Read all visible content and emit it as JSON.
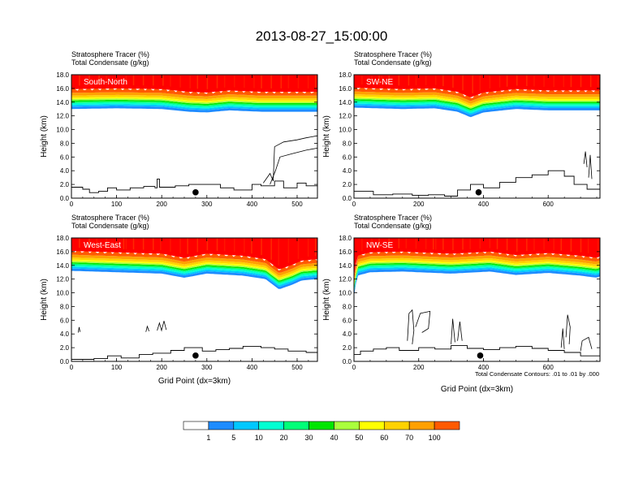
{
  "figure": {
    "title": "2013-08-27_15:00:00",
    "footnote": "Total Condensate Contours: .01 to .01 by .000"
  },
  "colorbar": {
    "labels": [
      "1",
      "5",
      "10",
      "20",
      "30",
      "40",
      "50",
      "60",
      "70",
      "100"
    ],
    "colors": [
      "#ffffff",
      "#1e8cff",
      "#00c8ff",
      "#00ffd2",
      "#00ff78",
      "#00e600",
      "#aaff3c",
      "#ffff00",
      "#ffd200",
      "#ffa000",
      "#ff5a00",
      "#ff0000"
    ]
  },
  "chart_data": [
    {
      "type": "contour",
      "panel_label": "South-North",
      "header_line1": "Stratosphere Tracer   (%)",
      "header_line2": "Total Condensate   (g/kg)",
      "ylabel": "Height (km)",
      "xlabel": "",
      "xlim": [
        0,
        545
      ],
      "ylim": [
        0,
        18
      ],
      "xticks": [
        "0",
        "100",
        "200",
        "300",
        "400",
        "500"
      ],
      "yticks": [
        "0.0",
        "2.0",
        "4.0",
        "6.0",
        "8.0",
        "10.0",
        "12.0",
        "14.0",
        "16.0",
        "18.0"
      ],
      "marker_x": 275,
      "terrain": [
        [
          0,
          1.6
        ],
        [
          25,
          1.3
        ],
        [
          40,
          0.8
        ],
        [
          60,
          1.0
        ],
        [
          80,
          1.5
        ],
        [
          100,
          1.2
        ],
        [
          130,
          1.5
        ],
        [
          160,
          1.7
        ],
        [
          185,
          1.5
        ],
        [
          190,
          2.8
        ],
        [
          195,
          1.6
        ],
        [
          230,
          1.8
        ],
        [
          260,
          2.0
        ],
        [
          300,
          2.0
        ],
        [
          330,
          1.5
        ],
        [
          360,
          1.2
        ],
        [
          400,
          2.0
        ],
        [
          420,
          1.8
        ],
        [
          450,
          2.5
        ],
        [
          470,
          1.5
        ],
        [
          500,
          2.2
        ],
        [
          520,
          1.8
        ],
        [
          545,
          1.8
        ]
      ],
      "tracer_base": [
        [
          0,
          13.0
        ],
        [
          100,
          13.1
        ],
        [
          200,
          13.0
        ],
        [
          260,
          12.6
        ],
        [
          300,
          12.5
        ],
        [
          350,
          12.8
        ],
        [
          420,
          12.6
        ],
        [
          480,
          12.6
        ],
        [
          545,
          12.6
        ]
      ],
      "condensate_contours": [
        [
          [
            425,
            2.2
          ],
          [
            440,
            3.6
          ],
          [
            447,
            2.5
          ],
          [
            450,
            7.5
          ],
          [
            470,
            8.2
          ],
          [
            500,
            8.5
          ],
          [
            520,
            8.8
          ],
          [
            545,
            9.1
          ]
        ],
        [
          [
            440,
            2.0
          ],
          [
            452,
            4.0
          ],
          [
            462,
            6.0
          ],
          [
            490,
            6.5
          ],
          [
            520,
            7.0
          ],
          [
            545,
            7.3
          ]
        ]
      ]
    },
    {
      "type": "contour",
      "panel_label": "SW-NE",
      "header_line1": "Stratosphere Tracer   (%)",
      "header_line2": "Total Condensate   (g/kg)",
      "ylabel": "Height (km)",
      "xlabel": "",
      "xlim": [
        0,
        760
      ],
      "ylim": [
        0,
        18
      ],
      "xticks": [
        "0",
        "200",
        "400",
        "600"
      ],
      "yticks": [
        "0.0",
        "2.0",
        "4.0",
        "6.0",
        "8.0",
        "10.0",
        "12.0",
        "14.0",
        "16.0",
        "18.0"
      ],
      "marker_x": 385,
      "terrain": [
        [
          0,
          1.0
        ],
        [
          60,
          0.5
        ],
        [
          120,
          0.6
        ],
        [
          180,
          0.4
        ],
        [
          230,
          0.5
        ],
        [
          280,
          0.3
        ],
        [
          320,
          1.2
        ],
        [
          360,
          2.0
        ],
        [
          400,
          1.5
        ],
        [
          450,
          2.3
        ],
        [
          500,
          3.0
        ],
        [
          550,
          3.4
        ],
        [
          600,
          4.0
        ],
        [
          650,
          3.2
        ],
        [
          680,
          2.0
        ],
        [
          720,
          1.3
        ],
        [
          760,
          1.2
        ]
      ],
      "tracer_base": [
        [
          0,
          13.2
        ],
        [
          150,
          13.0
        ],
        [
          250,
          13.1
        ],
        [
          320,
          12.6
        ],
        [
          360,
          11.8
        ],
        [
          400,
          12.5
        ],
        [
          500,
          13.0
        ],
        [
          600,
          12.8
        ],
        [
          700,
          12.8
        ],
        [
          760,
          12.8
        ]
      ],
      "condensate_contours": [
        [
          [
            710,
            5.0
          ],
          [
            715,
            6.8
          ],
          [
            720,
            4.5
          ]
        ],
        [
          [
            725,
            3.0
          ],
          [
            730,
            6.3
          ],
          [
            735,
            2.8
          ]
        ]
      ]
    },
    {
      "type": "contour",
      "panel_label": "West-East",
      "header_line1": "Stratosphere Tracer   (%)",
      "header_line2": "Total Condensate   (g/kg)",
      "ylabel": "Height (km)",
      "xlabel": "Grid Point (dx=3km)",
      "xlim": [
        0,
        545
      ],
      "ylim": [
        0,
        18
      ],
      "xticks": [
        "0",
        "100",
        "200",
        "300",
        "400",
        "500"
      ],
      "yticks": [
        "0.0",
        "2.0",
        "4.0",
        "6.0",
        "8.0",
        "10.0",
        "12.0",
        "14.0",
        "16.0",
        "18.0"
      ],
      "marker_x": 275,
      "terrain": [
        [
          0,
          0.3
        ],
        [
          50,
          0.4
        ],
        [
          80,
          0.8
        ],
        [
          110,
          0.5
        ],
        [
          150,
          1.0
        ],
        [
          180,
          1.2
        ],
        [
          220,
          1.6
        ],
        [
          250,
          2.0
        ],
        [
          290,
          1.5
        ],
        [
          320,
          1.7
        ],
        [
          350,
          1.9
        ],
        [
          380,
          2.2
        ],
        [
          420,
          2.0
        ],
        [
          450,
          1.8
        ],
        [
          480,
          1.5
        ],
        [
          520,
          1.3
        ],
        [
          545,
          1.0
        ]
      ],
      "tracer_base": [
        [
          0,
          13.2
        ],
        [
          100,
          13.0
        ],
        [
          200,
          12.8
        ],
        [
          250,
          12.2
        ],
        [
          300,
          12.8
        ],
        [
          380,
          12.5
        ],
        [
          430,
          12.0
        ],
        [
          460,
          10.5
        ],
        [
          490,
          11.2
        ],
        [
          510,
          11.8
        ],
        [
          545,
          12.0
        ]
      ],
      "condensate_contours": [
        [
          [
            15,
            4.2
          ],
          [
            17,
            5.0
          ],
          [
            19,
            4.3
          ]
        ],
        [
          [
            165,
            4.3
          ],
          [
            168,
            5.1
          ],
          [
            172,
            4.4
          ]
        ],
        [
          [
            190,
            4.5
          ],
          [
            195,
            5.6
          ],
          [
            200,
            4.4
          ]
        ],
        [
          [
            200,
            4.6
          ],
          [
            205,
            5.9
          ],
          [
            210,
            4.6
          ]
        ]
      ]
    },
    {
      "type": "contour",
      "panel_label": "NW-SE",
      "header_line1": "Stratosphere Tracer   (%)",
      "header_line2": "Total Condensate   (g/kg)",
      "ylabel": "Height (km)",
      "xlabel": "Grid Point (dx=3km)",
      "xlim": [
        0,
        760
      ],
      "ylim": [
        0,
        18
      ],
      "xticks": [
        "0",
        "200",
        "400",
        "600"
      ],
      "yticks": [
        "0.0",
        "2.0",
        "4.0",
        "6.0",
        "8.0",
        "10.0",
        "12.0",
        "14.0",
        "16.0",
        "18.0"
      ],
      "marker_x": 390,
      "terrain": [
        [
          0,
          1.0
        ],
        [
          20,
          1.5
        ],
        [
          60,
          1.8
        ],
        [
          100,
          2.0
        ],
        [
          140,
          1.6
        ],
        [
          200,
          2.0
        ],
        [
          250,
          1.8
        ],
        [
          300,
          2.3
        ],
        [
          350,
          1.9
        ],
        [
          400,
          1.7
        ],
        [
          450,
          2.0
        ],
        [
          500,
          2.2
        ],
        [
          550,
          1.9
        ],
        [
          600,
          1.6
        ],
        [
          650,
          1.3
        ],
        [
          700,
          0.8
        ],
        [
          760,
          0.5
        ]
      ],
      "tracer_base": [
        [
          0,
          9.5
        ],
        [
          10,
          12.5
        ],
        [
          50,
          13.0
        ],
        [
          150,
          13.1
        ],
        [
          300,
          12.8
        ],
        [
          420,
          13.1
        ],
        [
          500,
          12.6
        ],
        [
          600,
          12.9
        ],
        [
          700,
          12.5
        ],
        [
          750,
          12.2
        ],
        [
          760,
          12.4
        ]
      ],
      "condensate_contours": [
        [
          [
            165,
            3.0
          ],
          [
            170,
            7.0
          ],
          [
            180,
            7.5
          ],
          [
            185,
            4.5
          ],
          [
            180,
            2.5
          ]
        ],
        [
          [
            190,
            5.0
          ],
          [
            205,
            7.0
          ],
          [
            235,
            7.3
          ],
          [
            230,
            4.8
          ],
          [
            210,
            4.2
          ]
        ],
        [
          [
            300,
            2.5
          ],
          [
            305,
            6.2
          ],
          [
            312,
            2.8
          ]
        ],
        [
          [
            320,
            3.0
          ],
          [
            327,
            5.8
          ],
          [
            334,
            3.0
          ]
        ],
        [
          [
            640,
            2.0
          ],
          [
            645,
            4.8
          ],
          [
            650,
            1.8
          ]
        ],
        [
          [
            655,
            3.5
          ],
          [
            660,
            6.8
          ],
          [
            668,
            5.0
          ],
          [
            665,
            2.5
          ]
        ],
        [
          [
            700,
            1.5
          ],
          [
            705,
            3.0
          ],
          [
            725,
            3.5
          ],
          [
            735,
            1.8
          ]
        ]
      ]
    }
  ]
}
